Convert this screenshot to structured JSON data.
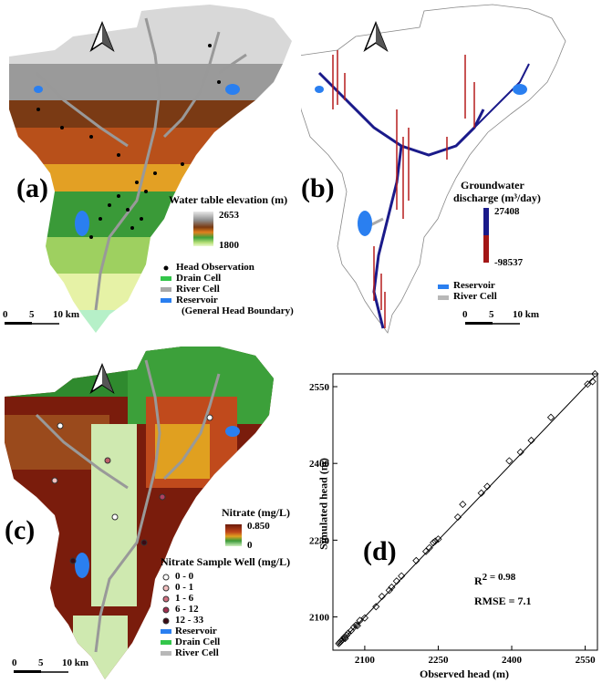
{
  "panel_a": {
    "label": "(a)",
    "legend_title": "Water table elevation (m)",
    "max": "2653",
    "min": "1800",
    "items": [
      "Head Observation",
      "Drain Cell",
      "River Cell",
      "Reservoir",
      "(General Head Boundary)"
    ],
    "scale": [
      "0",
      "5",
      "10 km"
    ]
  },
  "panel_b": {
    "label": "(b)",
    "legend_title_1": "Groundwater",
    "legend_title_2": "discharge (m³/day)",
    "max": "27408",
    "min": "-98537",
    "items": [
      "Reservoir",
      "River Cell"
    ],
    "scale": [
      "0",
      "5",
      "10 km"
    ]
  },
  "panel_c": {
    "label": "(c)",
    "legend_title": "Nitrate (mg/L)",
    "max": "0.850",
    "min": "0",
    "well_title": "Nitrate Sample Well (mg/L)",
    "wells": [
      "0 - 0",
      "0 - 1",
      "1 - 6",
      "6 - 12",
      "12 - 33"
    ],
    "items": [
      "Reservoir",
      "Drain Cell",
      "River Cell"
    ],
    "scale": [
      "0",
      "5",
      "10 km"
    ]
  },
  "chart_data": {
    "type": "scatter",
    "label": "(d)",
    "xlabel": "Observed head (m)",
    "ylabel": "Simulated head (m)",
    "xlim": [
      2035,
      2575
    ],
    "ylim": [
      2035,
      2575
    ],
    "xticks": [
      2100,
      2250,
      2400,
      2550
    ],
    "yticks": [
      2100,
      2250,
      2400,
      2550
    ],
    "r2_label": "R",
    "r2_value": "2 = 0.98",
    "rmse": "RMSE = 7.1",
    "fit_line": [
      [
        2045,
        2045
      ],
      [
        2570,
        2570
      ]
    ],
    "points": [
      [
        2047,
        2048
      ],
      [
        2049,
        2050
      ],
      [
        2051,
        2052
      ],
      [
        2053,
        2054
      ],
      [
        2055,
        2056
      ],
      [
        2058,
        2060
      ],
      [
        2060,
        2058
      ],
      [
        2063,
        2064
      ],
      [
        2066,
        2068
      ],
      [
        2072,
        2073
      ],
      [
        2078,
        2080
      ],
      [
        2082,
        2084
      ],
      [
        2085,
        2083
      ],
      [
        2090,
        2093
      ],
      [
        2100,
        2098
      ],
      [
        2123,
        2120
      ],
      [
        2135,
        2140
      ],
      [
        2150,
        2152
      ],
      [
        2155,
        2158
      ],
      [
        2165,
        2170
      ],
      [
        2175,
        2180
      ],
      [
        2205,
        2210
      ],
      [
        2225,
        2228
      ],
      [
        2232,
        2235
      ],
      [
        2240,
        2245
      ],
      [
        2244,
        2248
      ],
      [
        2250,
        2252
      ],
      [
        2290,
        2295
      ],
      [
        2300,
        2320
      ],
      [
        2338,
        2342
      ],
      [
        2350,
        2355
      ],
      [
        2395,
        2405
      ],
      [
        2418,
        2422
      ],
      [
        2440,
        2445
      ],
      [
        2480,
        2490
      ],
      [
        2555,
        2555
      ],
      [
        2565,
        2560
      ],
      [
        2570,
        2575
      ]
    ]
  }
}
